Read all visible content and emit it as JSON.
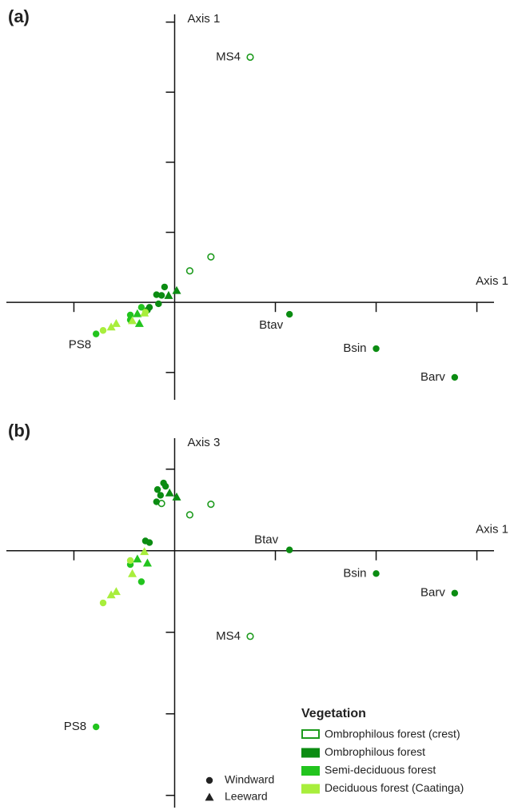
{
  "chart_data": [
    {
      "type": "scatter",
      "title": "(a)",
      "ylabel": "Axis 1",
      "xlabel": "Axis 1",
      "xlim": [
        -1.67,
        3.17
      ],
      "ylim": [
        -1.39,
        4.11
      ],
      "xticks": [
        -1,
        1,
        2,
        3
      ],
      "yticks": [
        -1,
        1,
        2,
        3,
        4
      ],
      "series": [
        {
          "vegetation": "Ombrophilous forest (crest)",
          "x": [
            0.75,
            0.36,
            0.15
          ],
          "y": [
            3.5,
            0.65,
            0.45
          ],
          "aspect": [
            "Windward",
            "Windward",
            "Windward"
          ],
          "point_labels": [
            "MS4",
            null,
            null
          ]
        },
        {
          "vegetation": "Ombrophilous forest",
          "x": [
            1.14,
            2.0,
            2.78,
            -0.1,
            -0.18,
            -0.13,
            -0.25,
            -0.16,
            -0.27,
            0.02,
            -0.06
          ],
          "y": [
            -0.17,
            -0.66,
            -1.07,
            0.22,
            0.11,
            0.1,
            -0.07,
            -0.02,
            -0.11,
            0.17,
            0.1
          ],
          "aspect": [
            "Windward",
            "Windward",
            "Windward",
            "Windward",
            "Windward",
            "Windward",
            "Windward",
            "Windward",
            "Windward",
            "Leeward",
            "Leeward"
          ],
          "point_labels": [
            "Btav",
            "Bsin",
            "Barv",
            null,
            null,
            null,
            null,
            null,
            null,
            null,
            null
          ]
        },
        {
          "vegetation": "Semi-deciduous forest",
          "x": [
            -0.78,
            -0.44,
            -0.33,
            -0.44,
            -0.35,
            -0.37
          ],
          "y": [
            -0.45,
            -0.18,
            -0.07,
            -0.25,
            -0.3,
            -0.16
          ],
          "aspect": [
            "Windward",
            "Windward",
            "Windward",
            "Windward",
            "Leeward",
            "Leeward"
          ],
          "point_labels": [
            "PS8",
            null,
            null,
            null,
            null,
            null
          ]
        },
        {
          "vegetation": "Deciduous forest (Caatinga)",
          "x": [
            -0.71,
            -0.29,
            -0.58,
            -0.63,
            -0.42,
            -0.3
          ],
          "y": [
            -0.4,
            -0.14,
            -0.3,
            -0.35,
            -0.26,
            -0.15
          ],
          "aspect": [
            "Windward",
            "Windward",
            "Leeward",
            "Leeward",
            "Leeward",
            "Leeward"
          ],
          "point_labels": [
            null,
            null,
            null,
            null,
            null,
            null
          ]
        }
      ]
    },
    {
      "type": "scatter",
      "title": "(b)",
      "ylabel": "Axis 3",
      "xlabel": "Axis 1",
      "xlim": [
        -1.67,
        3.17
      ],
      "ylim": [
        -3.15,
        1.38
      ],
      "xticks": [
        -1,
        1,
        2,
        3
      ],
      "yticks": [
        -3,
        -2,
        -1,
        1
      ],
      "series": [
        {
          "vegetation": "Ombrophilous forest (crest)",
          "x": [
            0.75,
            0.36,
            0.15,
            -0.13
          ],
          "y": [
            -1.05,
            0.57,
            0.44,
            0.58
          ],
          "aspect": [
            "Windward",
            "Windward",
            "Windward",
            "Windward"
          ],
          "point_labels": [
            "MS4",
            null,
            null,
            null
          ]
        },
        {
          "vegetation": "Ombrophilous forest",
          "x": [
            1.14,
            2.0,
            2.78,
            -0.11,
            -0.09,
            -0.17,
            -0.14,
            -0.18,
            -0.29,
            -0.25,
            -0.05,
            0.02
          ],
          "y": [
            0.01,
            -0.28,
            -0.52,
            0.83,
            0.79,
            0.75,
            0.68,
            0.6,
            0.12,
            0.1,
            0.71,
            0.66
          ],
          "aspect": [
            "Windward",
            "Windward",
            "Windward",
            "Windward",
            "Windward",
            "Windward",
            "Windward",
            "Windward",
            "Windward",
            "Windward",
            "Leeward",
            "Leeward"
          ],
          "point_labels": [
            "Btav",
            "Bsin",
            "Barv",
            null,
            null,
            null,
            null,
            null,
            null,
            null,
            null,
            null
          ]
        },
        {
          "vegetation": "Semi-deciduous forest",
          "x": [
            -0.78,
            -0.44,
            -0.33,
            -0.37,
            -0.27
          ],
          "y": [
            -2.16,
            -0.17,
            -0.38,
            -0.1,
            -0.15
          ],
          "aspect": [
            "Windward",
            "Windward",
            "Windward",
            "Leeward",
            "Leeward"
          ],
          "point_labels": [
            "PS8",
            null,
            null,
            null,
            null
          ]
        },
        {
          "vegetation": "Deciduous forest (Caatinga)",
          "x": [
            -0.44,
            -0.71,
            -0.3,
            -0.42,
            -0.58,
            -0.63
          ],
          "y": [
            -0.12,
            -0.64,
            -0.01,
            -0.28,
            -0.5,
            -0.54
          ],
          "aspect": [
            "Windward",
            "Windward",
            "Leeward",
            "Leeward",
            "Leeward",
            "Leeward"
          ],
          "point_labels": [
            null,
            null,
            null,
            null,
            null,
            null
          ]
        }
      ]
    }
  ],
  "legend": {
    "title": "Vegetation",
    "vegetation": [
      {
        "name": "Ombrophilous forest (crest)",
        "color": "#1e9b1e",
        "filled": false
      },
      {
        "name": "Ombrophilous forest",
        "color": "#0b8c12",
        "filled": true
      },
      {
        "name": "Semi-deciduous forest",
        "color": "#22c41e",
        "filled": true
      },
      {
        "name": "Deciduous forest (Caatinga)",
        "color": "#a8ee3c",
        "filled": true
      }
    ],
    "aspects": [
      {
        "name": "Windward",
        "marker": "circle"
      },
      {
        "name": "Leeward",
        "marker": "triangle"
      }
    ]
  }
}
